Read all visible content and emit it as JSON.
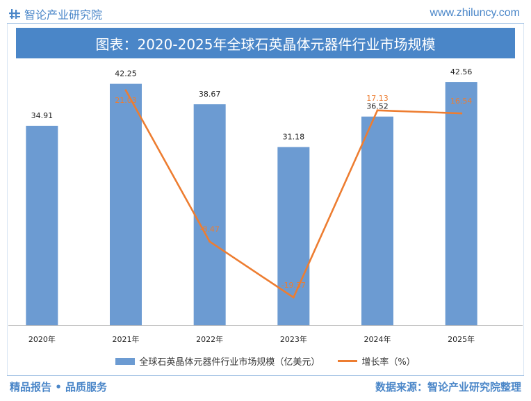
{
  "header": {
    "brand_name": "智论产业研究院",
    "site_url": "www.zhiluncy.com",
    "title": "图表：2020-2025年全球石英晶体元器件行业市场规模"
  },
  "footer": {
    "left_text": "精品报告 • 品质服务",
    "right_text": "数据来源：智论产业研究院整理"
  },
  "colors": {
    "bar": "#6c9bd2",
    "line": "#ed7d31",
    "brand": "#4a86c8"
  },
  "chart_data": {
    "type": "bar",
    "title": "图表：2020-2025年全球石英晶体元器件行业市场规模",
    "categories": [
      "2020年",
      "2021年",
      "2022年",
      "2023年",
      "2024年",
      "2025年"
    ],
    "series": [
      {
        "name": "全球石英晶体元器件行业市场规模（亿美元）",
        "type": "bar",
        "axis": "left",
        "values": [
          34.91,
          42.25,
          38.67,
          31.18,
          36.52,
          42.56
        ],
        "labels": [
          "34.91",
          "42.25",
          "38.67",
          "31.18",
          "36.52",
          "42.56"
        ]
      },
      {
        "name": "增长率（%）",
        "type": "line",
        "axis": "right",
        "values": [
          null,
          21.03,
          -8.47,
          -19.37,
          17.13,
          16.54
        ],
        "labels": [
          "",
          "21.03",
          "-8.47",
          "-19.37",
          "17.13",
          "16.54"
        ]
      }
    ],
    "ylim_left": [
      0,
      45
    ],
    "ylim_right": [
      -25,
      30
    ],
    "legend_position": "bottom",
    "grid": false
  }
}
